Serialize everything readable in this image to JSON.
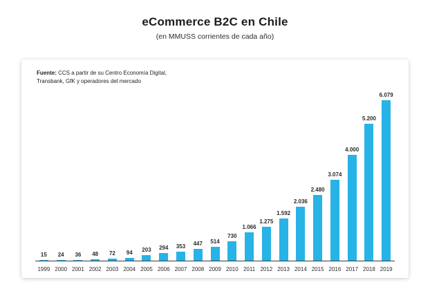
{
  "header": {
    "title": "eCommerce B2C en Chile",
    "subtitle": "(en MMUSS corrientes de cada año)"
  },
  "source": {
    "label": "Fuente:",
    "text": " CCS a partir de su Centro Economía Digital, Transbank, GfK y operadores del mercado"
  },
  "chart_data": {
    "type": "bar",
    "title": "eCommerce B2C en Chile",
    "subtitle": "(en MMUSS corrientes de cada año)",
    "categories": [
      "1999",
      "2000",
      "2001",
      "2002",
      "2003",
      "2004",
      "2005",
      "2006",
      "2007",
      "2008",
      "2009",
      "2010",
      "2011",
      "2012",
      "2013",
      "2014",
      "2015",
      "2016",
      "2017",
      "2018",
      "2019"
    ],
    "values": [
      15,
      24,
      36,
      48,
      72,
      94,
      203,
      294,
      353,
      447,
      514,
      730,
      1066,
      1275,
      1592,
      2036,
      2480,
      3074,
      4000,
      5200,
      6079
    ],
    "value_labels": [
      "15",
      "24",
      "36",
      "48",
      "72",
      "94",
      "203",
      "294",
      "353",
      "447",
      "514",
      "730",
      "1.066",
      "1.275",
      "1.592",
      "2.036",
      "2.480",
      "3.074",
      "4.000",
      "5.200",
      "6.079"
    ],
    "bar_color": "#27b3e6",
    "xlabel": "",
    "ylabel": "",
    "ylim": [
      0,
      6500
    ],
    "grid": false,
    "legend": false
  }
}
